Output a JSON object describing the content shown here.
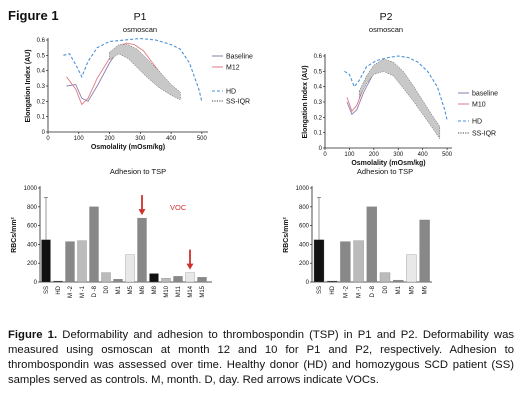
{
  "figure_label": "Figure 1",
  "caption": {
    "label": "Figure 1.",
    "text": "Deformability and adhesion to thrombospondin (TSP) in P1 and P2. Deformability was measured using osmoscan at month 12 and 10 for P1 and P2, respectively. Adhesion to thrombospondin was assessed over time. Healthy donor (HD) and homozygous SCD patient (SS) samples served as controls.  M, month. D, day. Red arrows indicate VOCs."
  },
  "colors": {
    "baseline": "#8a7fb0",
    "followup": "#e07a80",
    "hd": "#4a90d9",
    "ssiqr": "#444444",
    "band": "#c8c8c8",
    "arrow": "#d0312d"
  },
  "chart_data": [
    {
      "type": "line",
      "panel": "P1",
      "title": "P1",
      "subtitle": "osmoscan",
      "xlabel": "Osmolality (mOsm/kg)",
      "ylabel": "Elongation Index (AU)",
      "xlim": [
        0,
        520
      ],
      "ylim": [
        0,
        0.6
      ],
      "xticks": [
        0,
        100,
        200,
        300,
        400,
        500
      ],
      "yticks": [
        0,
        0.1,
        0.2,
        0.3,
        0.4,
        0.5,
        0.6
      ],
      "legend": [
        "Baseline",
        "M12",
        "HD",
        "SS-IQR"
      ],
      "series": [
        {
          "name": "Baseline",
          "style": "solid",
          "x": [
            60,
            90,
            110,
            130,
            160,
            200,
            230,
            250,
            270,
            300,
            330,
            360,
            400,
            430
          ],
          "y": [
            0.3,
            0.31,
            0.22,
            0.2,
            0.3,
            0.45,
            0.54,
            0.55,
            0.54,
            0.5,
            0.43,
            0.36,
            0.27,
            0.22
          ]
        },
        {
          "name": "M12",
          "style": "solid",
          "x": [
            60,
            90,
            110,
            130,
            160,
            200,
            230,
            255,
            280,
            310,
            340,
            370,
            400,
            430
          ],
          "y": [
            0.36,
            0.28,
            0.18,
            0.22,
            0.35,
            0.48,
            0.56,
            0.58,
            0.57,
            0.53,
            0.45,
            0.37,
            0.28,
            0.22
          ]
        },
        {
          "name": "HD",
          "style": "dashed",
          "x": [
            50,
            70,
            90,
            110,
            130,
            160,
            200,
            250,
            300,
            350,
            400,
            430,
            460,
            490,
            500
          ],
          "y": [
            0.5,
            0.51,
            0.44,
            0.36,
            0.46,
            0.55,
            0.59,
            0.6,
            0.61,
            0.6,
            0.57,
            0.54,
            0.45,
            0.28,
            0.2
          ]
        },
        {
          "name": "SS-IQR",
          "style": "band",
          "x": [
            200,
            230,
            260,
            290,
            320,
            360,
            400,
            430
          ],
          "y_low": [
            0.47,
            0.51,
            0.48,
            0.42,
            0.36,
            0.29,
            0.24,
            0.21
          ],
          "y_high": [
            0.52,
            0.57,
            0.57,
            0.54,
            0.48,
            0.4,
            0.31,
            0.26
          ]
        }
      ]
    },
    {
      "type": "line",
      "panel": "P2",
      "title": "P2",
      "subtitle": "osmoscan",
      "xlabel": "Osmolality (mOsm/kg)",
      "ylabel": "Elongation Index (AU)",
      "xlim": [
        0,
        520
      ],
      "ylim": [
        0,
        0.6
      ],
      "xticks": [
        0,
        100,
        200,
        300,
        400,
        500
      ],
      "yticks": [
        0,
        0.1,
        0.2,
        0.3,
        0.4,
        0.5,
        0.6
      ],
      "legend": [
        "baseline",
        "M10",
        "HD",
        "SS-IQR"
      ],
      "series": [
        {
          "name": "baseline",
          "style": "solid",
          "x": [
            90,
            110,
            130,
            160,
            200,
            240,
            270,
            300,
            340,
            380,
            420,
            450
          ],
          "y": [
            0.3,
            0.22,
            0.25,
            0.37,
            0.49,
            0.55,
            0.54,
            0.49,
            0.4,
            0.3,
            0.2,
            0.12
          ]
        },
        {
          "name": "M10",
          "style": "solid",
          "x": [
            90,
            110,
            130,
            160,
            200,
            240,
            270,
            300,
            340,
            380,
            420,
            450
          ],
          "y": [
            0.33,
            0.24,
            0.28,
            0.4,
            0.52,
            0.57,
            0.55,
            0.5,
            0.42,
            0.32,
            0.22,
            0.15
          ]
        },
        {
          "name": "HD",
          "style": "dashed",
          "x": [
            80,
            100,
            120,
            140,
            170,
            210,
            260,
            300,
            340,
            380,
            420,
            460,
            490,
            500
          ],
          "y": [
            0.5,
            0.48,
            0.4,
            0.44,
            0.53,
            0.57,
            0.59,
            0.6,
            0.59,
            0.56,
            0.5,
            0.4,
            0.25,
            0.18
          ]
        },
        {
          "name": "SS-IQR",
          "style": "band",
          "x": [
            140,
            170,
            200,
            240,
            280,
            320,
            360,
            400,
            440,
            470
          ],
          "y_low": [
            0.33,
            0.42,
            0.48,
            0.5,
            0.47,
            0.39,
            0.31,
            0.22,
            0.13,
            0.06
          ],
          "y_high": [
            0.37,
            0.47,
            0.54,
            0.58,
            0.56,
            0.5,
            0.41,
            0.31,
            0.21,
            0.14
          ]
        }
      ]
    },
    {
      "type": "bar",
      "panel": "P1",
      "title": "Adhesion to TSP",
      "ylabel": "RBCs/mm²",
      "ylim": [
        0,
        1000
      ],
      "yticks": [
        0,
        200,
        400,
        600,
        800,
        1000
      ],
      "categories": [
        "SS",
        "HD",
        "M -2",
        "M -1",
        "D -8",
        "D0",
        "M1",
        "M5",
        "M6",
        "M8",
        "M10",
        "M11",
        "M14",
        "M15"
      ],
      "values": [
        450,
        10,
        430,
        440,
        800,
        100,
        30,
        290,
        680,
        90,
        40,
        60,
        100,
        50
      ],
      "error_upper": [
        900,
        null,
        null,
        null,
        null,
        null,
        null,
        null,
        null,
        null,
        null,
        null,
        null,
        null
      ],
      "bar_colors": [
        "#111111",
        "#111111",
        "#888888",
        "#bbbbbb",
        "#888888",
        "#bbbbbb",
        "#888888",
        "#e8e8e8",
        "#888888",
        "#111111",
        "#bbbbbb",
        "#888888",
        "#e8e8e8",
        "#888888"
      ],
      "annotation": "VOC",
      "arrows_at": [
        "M6",
        "M14"
      ]
    },
    {
      "type": "bar",
      "panel": "P2",
      "title": "Adhesion to TSP",
      "ylabel": "RBCs/mm²",
      "ylim": [
        0,
        1000
      ],
      "yticks": [
        0,
        200,
        400,
        600,
        800,
        1000
      ],
      "categories": [
        "SS",
        "HD",
        "M -2",
        "M -1",
        "D -8",
        "D0",
        "M1",
        "M5",
        "M6"
      ],
      "values": [
        450,
        10,
        430,
        440,
        800,
        100,
        20,
        290,
        660
      ],
      "error_upper": [
        900,
        null,
        null,
        null,
        null,
        null,
        null,
        null,
        null
      ],
      "bar_colors": [
        "#111111",
        "#111111",
        "#888888",
        "#bbbbbb",
        "#888888",
        "#bbbbbb",
        "#888888",
        "#e8e8e8",
        "#888888"
      ]
    }
  ]
}
